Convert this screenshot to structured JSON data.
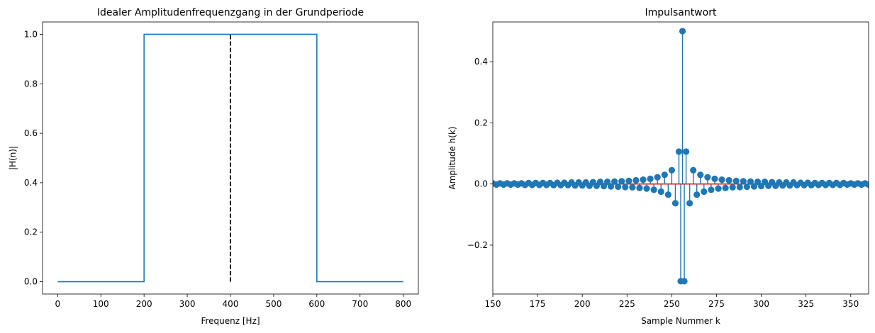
{
  "chart_data": [
    {
      "type": "line",
      "title": "Idealer Amplitudenfrequenzgang in der Grundperiode",
      "xlabel": "Frequenz [Hz]",
      "ylabel": "|H(n)|",
      "xlim": [
        -35,
        835
      ],
      "ylim": [
        -0.05,
        1.05
      ],
      "xticks": [
        0,
        100,
        200,
        300,
        400,
        500,
        600,
        700,
        800
      ],
      "yticks": [
        0.0,
        0.2,
        0.4,
        0.6,
        0.8,
        1.0
      ],
      "xtick_labels": [
        "0",
        "100",
        "200",
        "300",
        "400",
        "500",
        "600",
        "700",
        "800"
      ],
      "ytick_labels": [
        "0.0",
        "0.2",
        "0.4",
        "0.6",
        "0.8",
        "1.0"
      ],
      "series": [
        {
          "color": "#1f77b4",
          "style": "solid",
          "x": [
            0,
            200,
            200,
            600,
            600,
            800
          ],
          "y": [
            0,
            0,
            1,
            1,
            0,
            0
          ]
        },
        {
          "color": "#000000",
          "style": "dashed",
          "x": [
            400,
            400
          ],
          "y": [
            0,
            1
          ]
        }
      ]
    },
    {
      "type": "scatter",
      "subtype": "stem",
      "title": "Impulsantwort",
      "xlabel": "Sample Nummer k",
      "ylabel": "Amplitude h(k)",
      "xlim": [
        150,
        360
      ],
      "ylim": [
        -0.36,
        0.53
      ],
      "xticks": [
        150,
        175,
        200,
        225,
        250,
        275,
        300,
        325,
        350
      ],
      "yticks": [
        -0.2,
        0.0,
        0.2,
        0.4
      ],
      "xtick_labels": [
        "150",
        "175",
        "200",
        "225",
        "250",
        "275",
        "300",
        "325",
        "350"
      ],
      "ytick_labels": [
        "−0.2",
        "0.0",
        "0.2",
        "0.4"
      ],
      "marker_color": "#1f77b4",
      "baseline_color": "#d62728",
      "points": [
        [
          150,
          0.002
        ],
        [
          152,
          -0.002
        ],
        [
          154,
          0.002
        ],
        [
          156,
          -0.002
        ],
        [
          158,
          0.002
        ],
        [
          160,
          -0.002
        ],
        [
          162,
          0.002
        ],
        [
          164,
          -0.002
        ],
        [
          166,
          0.002
        ],
        [
          168,
          -0.003
        ],
        [
          170,
          0.003
        ],
        [
          172,
          -0.003
        ],
        [
          174,
          0.003
        ],
        [
          176,
          -0.003
        ],
        [
          178,
          0.003
        ],
        [
          180,
          -0.003
        ],
        [
          182,
          0.003
        ],
        [
          184,
          -0.004
        ],
        [
          186,
          0.004
        ],
        [
          188,
          -0.004
        ],
        [
          190,
          0.004
        ],
        [
          192,
          -0.004
        ],
        [
          194,
          0.005
        ],
        [
          196,
          -0.005
        ],
        [
          198,
          0.005
        ],
        [
          200,
          -0.005
        ],
        [
          202,
          0.005
        ],
        [
          204,
          -0.006
        ],
        [
          206,
          0.006
        ],
        [
          208,
          -0.006
        ],
        [
          210,
          0.007
        ],
        [
          212,
          -0.007
        ],
        [
          214,
          0.007
        ],
        [
          216,
          -0.008
        ],
        [
          218,
          0.008
        ],
        [
          220,
          -0.009
        ],
        [
          222,
          0.009
        ],
        [
          224,
          -0.01
        ],
        [
          226,
          0.01
        ],
        [
          228,
          -0.011
        ],
        [
          230,
          0.012
        ],
        [
          232,
          -0.013
        ],
        [
          234,
          0.014
        ],
        [
          236,
          -0.015
        ],
        [
          238,
          0.017
        ],
        [
          240,
          -0.019
        ],
        [
          242,
          0.022
        ],
        [
          244,
          -0.025
        ],
        [
          246,
          0.03
        ],
        [
          248,
          -0.035
        ],
        [
          250,
          0.045
        ],
        [
          252,
          -0.063
        ],
        [
          254,
          0.106
        ],
        [
          255,
          -0.318
        ],
        [
          256,
          0.5
        ],
        [
          257,
          -0.318
        ],
        [
          258,
          0.106
        ],
        [
          260,
          -0.063
        ],
        [
          262,
          0.045
        ],
        [
          264,
          -0.035
        ],
        [
          266,
          0.03
        ],
        [
          268,
          -0.025
        ],
        [
          270,
          0.022
        ],
        [
          272,
          -0.019
        ],
        [
          274,
          0.017
        ],
        [
          276,
          -0.015
        ],
        [
          278,
          0.014
        ],
        [
          280,
          -0.013
        ],
        [
          282,
          0.012
        ],
        [
          284,
          -0.011
        ],
        [
          286,
          0.01
        ],
        [
          288,
          -0.01
        ],
        [
          290,
          0.009
        ],
        [
          292,
          -0.009
        ],
        [
          294,
          0.008
        ],
        [
          296,
          -0.008
        ],
        [
          298,
          0.007
        ],
        [
          300,
          -0.007
        ],
        [
          302,
          0.007
        ],
        [
          304,
          -0.006
        ],
        [
          306,
          0.006
        ],
        [
          308,
          -0.006
        ],
        [
          310,
          0.005
        ],
        [
          312,
          -0.005
        ],
        [
          314,
          0.005
        ],
        [
          316,
          -0.005
        ],
        [
          318,
          0.005
        ],
        [
          320,
          -0.004
        ],
        [
          322,
          0.004
        ],
        [
          324,
          -0.004
        ],
        [
          326,
          0.004
        ],
        [
          328,
          -0.004
        ],
        [
          330,
          0.003
        ],
        [
          332,
          -0.003
        ],
        [
          334,
          0.003
        ],
        [
          336,
          -0.003
        ],
        [
          338,
          0.003
        ],
        [
          340,
          -0.003
        ],
        [
          342,
          0.003
        ],
        [
          344,
          -0.003
        ],
        [
          346,
          0.003
        ],
        [
          348,
          -0.002
        ],
        [
          350,
          0.002
        ],
        [
          352,
          -0.002
        ],
        [
          354,
          0.002
        ],
        [
          356,
          -0.002
        ],
        [
          358,
          0.002
        ],
        [
          360,
          -0.002
        ]
      ]
    }
  ]
}
